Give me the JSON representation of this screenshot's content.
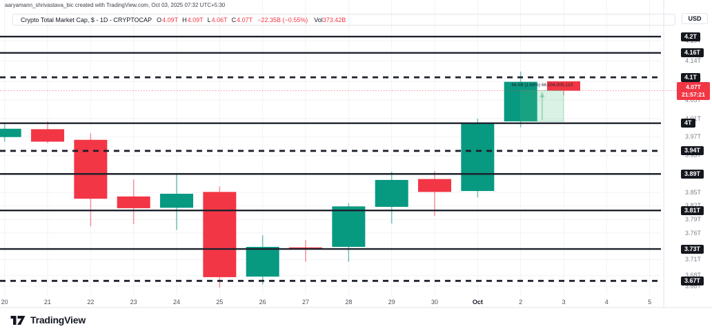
{
  "attribution": "aaryamann_shrivastava_bic created with TradingView.com, Oct 03, 2025 07:32 UTC+5:30",
  "currency_button": "USD",
  "logo_text": "TradingView",
  "legend": {
    "title": "Crypto Total Market Cap, $ - 1D - CRYPTOCAP",
    "ohlc": [
      {
        "key": "O",
        "value": "4.09T"
      },
      {
        "key": "H",
        "value": "4.09T"
      },
      {
        "key": "L",
        "value": "4.06T"
      },
      {
        "key": "C",
        "value": "4.07T"
      }
    ],
    "change": "−22.35B (−0.55%)",
    "vol_label": "Vol",
    "vol_value": "373.42B"
  },
  "last_price": {
    "label": "4.07T",
    "countdown": "21:57:21",
    "price": 4.07
  },
  "colors": {
    "up": "#089981",
    "down": "#f23645",
    "up_wick": "rgba(8,153,129,0.55)",
    "down_wick": "rgba(242,54,69,0.5)",
    "level_line": "#1d212c",
    "grid": "#f0f2f5",
    "axis_text": "#80838e",
    "badge_bg": "#15171e",
    "last_badge_bg": "#f23645",
    "measure_fill": "rgba(84,196,138,0.22)",
    "measure_stroke": "rgba(60,176,120,0.45)",
    "separator": "#e0e3eb"
  },
  "chart_data": {
    "type": "candlestick",
    "title": "Crypto Total Market Cap (CRYPTOCAP, 1D)",
    "ylabel": "Market cap (trillions USD)",
    "yrange": [
      3.66,
      4.21
    ],
    "grid": true,
    "x_labels": [
      {
        "label": "20"
      },
      {
        "label": "21"
      },
      {
        "label": "22"
      },
      {
        "label": "23"
      },
      {
        "label": "24"
      },
      {
        "label": "25"
      },
      {
        "label": "26"
      },
      {
        "label": "27"
      },
      {
        "label": "28"
      },
      {
        "label": "29"
      },
      {
        "label": "30"
      },
      {
        "label": "Oct",
        "bold": true
      },
      {
        "label": "2"
      },
      {
        "label": "3"
      },
      {
        "label": "4"
      },
      {
        "label": "5"
      }
    ],
    "y_ticks": [
      {
        "label": "4.19T",
        "price": 4.19
      },
      {
        "label": "4.14T",
        "price": 4.14
      },
      {
        "label": "4.09T",
        "price": 4.09
      },
      {
        "label": "4.05T",
        "price": 4.05
      },
      {
        "label": "4.01T",
        "price": 4.01
      },
      {
        "label": "3.97T",
        "price": 3.97
      },
      {
        "label": "3.93T",
        "price": 3.93
      },
      {
        "label": "3.85T",
        "price": 3.85
      },
      {
        "label": "3.82T",
        "price": 3.82
      },
      {
        "label": "3.79T",
        "price": 3.79
      },
      {
        "label": "3.76T",
        "price": 3.76
      },
      {
        "label": "3.71T",
        "price": 3.71
      },
      {
        "label": "3.68T",
        "price": 3.68
      },
      {
        "label": "3.66T",
        "price": 3.66
      }
    ],
    "levels": [
      {
        "label": "4.2T",
        "price": 4.2,
        "style": "solid"
      },
      {
        "label": "4.16T",
        "price": 4.16,
        "style": "solid"
      },
      {
        "label": "4.1T",
        "price": 4.1,
        "style": "dashed"
      },
      {
        "label": "4T",
        "price": 4.0,
        "style": "solid"
      },
      {
        "label": "3.94T",
        "price": 3.94,
        "style": "dashed"
      },
      {
        "label": "3.89T",
        "price": 3.89,
        "style": "solid"
      },
      {
        "label": "3.81T",
        "price": 3.81,
        "style": "solid"
      },
      {
        "label": "3.73T",
        "price": 3.73,
        "style": "solid"
      },
      {
        "label": "3.67T",
        "price": 3.67,
        "style": "dashed"
      }
    ],
    "candles": [
      {
        "date": "Sep 20",
        "o": 3.97,
        "h": 4.002,
        "l": 3.96,
        "c": 3.988
      },
      {
        "date": "Sep 21",
        "o": 3.987,
        "h": 4.004,
        "l": 3.957,
        "c": 3.96
      },
      {
        "date": "Sep 22",
        "o": 3.964,
        "h": 3.978,
        "l": 3.775,
        "c": 3.836
      },
      {
        "date": "Sep 23",
        "o": 3.841,
        "h": 3.878,
        "l": 3.78,
        "c": 3.815
      },
      {
        "date": "Sep 24",
        "o": 3.816,
        "h": 3.892,
        "l": 3.767,
        "c": 3.847
      },
      {
        "date": "Sep 25",
        "o": 3.851,
        "h": 3.863,
        "l": 3.657,
        "c": 3.677
      },
      {
        "date": "Sep 26",
        "o": 3.678,
        "h": 3.756,
        "l": 3.663,
        "c": 3.734
      },
      {
        "date": "Sep 27",
        "o": 3.733,
        "h": 3.747,
        "l": 3.706,
        "c": 3.73
      },
      {
        "date": "Sep 28",
        "o": 3.734,
        "h": 3.826,
        "l": 3.706,
        "c": 3.819
      },
      {
        "date": "Sep 29",
        "o": 3.818,
        "h": 3.895,
        "l": 3.781,
        "c": 3.877
      },
      {
        "date": "Sep 30",
        "o": 3.879,
        "h": 3.896,
        "l": 3.798,
        "c": 3.851
      },
      {
        "date": "Oct 1",
        "o": 3.853,
        "h": 4.01,
        "l": 3.839,
        "c": 4.001
      },
      {
        "date": "Oct 2",
        "o": 4.004,
        "h": 4.114,
        "l": 3.991,
        "c": 4.089
      },
      {
        "date": "Oct 3",
        "o": 4.09,
        "h": 4.09,
        "l": 4.06,
        "c": 4.07
      }
    ],
    "measure_tool": {
      "text": "66.5B (1.66%) 66,504,005,123",
      "from_price": 4.004,
      "to_price": 4.0705,
      "from_index": 12,
      "to_index": 13
    }
  }
}
